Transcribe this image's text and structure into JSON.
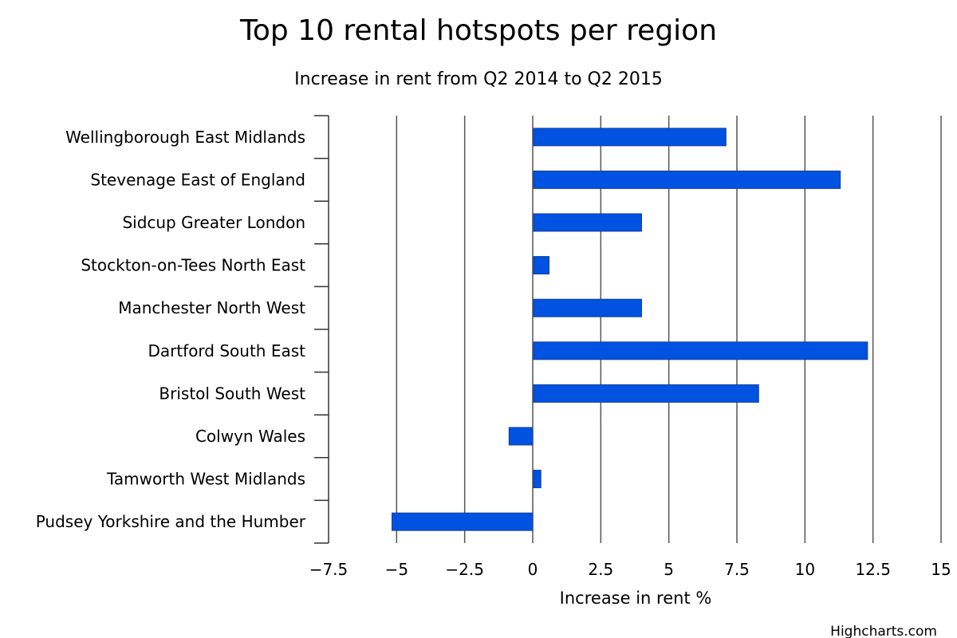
{
  "chart_data": {
    "type": "bar",
    "orientation": "horizontal",
    "title": "Top 10 rental hotspots per region",
    "subtitle": "Increase in rent from Q2 2014 to Q2 2015",
    "xlabel": "Increase in rent %",
    "categories": [
      "Wellingborough East Midlands",
      "Stevenage East of England",
      "Sidcup Greater London",
      "Stockton-on-Tees North East",
      "Manchester North West",
      "Dartford South East",
      "Bristol South West",
      "Colwyn Wales",
      "Tamworth West Midlands",
      "Pudsey Yorkshire and the Humber"
    ],
    "values": [
      7.1,
      11.3,
      4.0,
      0.6,
      4.0,
      12.3,
      8.3,
      -0.9,
      0.3,
      -5.2
    ],
    "xlim": [
      -7.5,
      15
    ],
    "ticks": [
      -7.5,
      -5,
      -2.5,
      0,
      2.5,
      5,
      7.5,
      10,
      12.5,
      15
    ],
    "tick_labels": [
      "−7.5",
      "−5",
      "−2.5",
      "0",
      "2.5",
      "5",
      "7.5",
      "10",
      "12.5",
      "15"
    ],
    "grid": true,
    "legend": "none",
    "bar_color": "#0052e0",
    "bar_border_color": "#1a3fa0",
    "credits": "Highcharts.com"
  }
}
